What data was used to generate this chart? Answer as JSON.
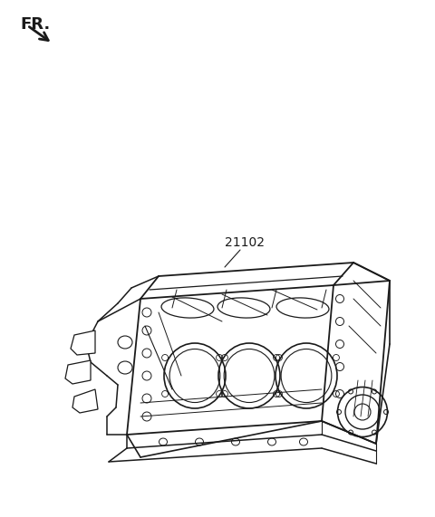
{
  "background_color": "#ffffff",
  "fr_label": "FR.",
  "fr_fontsize": 13,
  "fr_fontweight": "bold",
  "part_number": "21102",
  "part_fontsize": 10,
  "line_color": "#1a1a1a",
  "line_width": 1.0,
  "fig_w": 4.8,
  "fig_h": 5.71,
  "dpi": 100
}
